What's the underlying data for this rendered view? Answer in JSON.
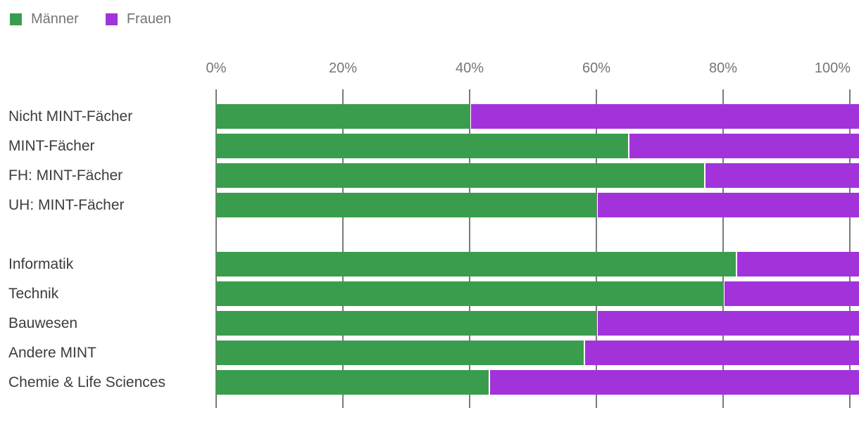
{
  "colors": {
    "maenner": "#3A9D4E",
    "frauen": "#A233DB",
    "gridline": "#7B7B7B",
    "axis_text": "#757575",
    "category_text": "#3D3D3D",
    "background": "#FFFFFF"
  },
  "legend": {
    "items": [
      {
        "label": "Männer",
        "color": "#3A9D4E"
      },
      {
        "label": "Frauen",
        "color": "#A233DB"
      }
    ]
  },
  "chart_data": {
    "type": "bar",
    "orientation": "horizontal",
    "stacked": true,
    "stack_total": 100,
    "title": "",
    "xlabel": "",
    "ylabel": "",
    "xlim": [
      0,
      100
    ],
    "x_ticks": [
      "0%",
      "20%",
      "40%",
      "60%",
      "80%",
      "100%"
    ],
    "grid": true,
    "legend_position": "top-left",
    "categories": [
      "Nicht MINT-Fächer",
      "MINT-Fächer",
      "FH: MINT-Fächer",
      "UH: MINT-Fächer",
      "",
      "Informatik",
      "Technik",
      "Bauwesen",
      "Andere MINT",
      "Chemie & Life Sciences"
    ],
    "series": [
      {
        "name": "Männer",
        "color": "#3A9D4E",
        "values": [
          40,
          65,
          77,
          60,
          null,
          82,
          80,
          60,
          58,
          43
        ]
      },
      {
        "name": "Frauen",
        "color": "#A233DB",
        "values": [
          60,
          35,
          23,
          40,
          null,
          18,
          20,
          40,
          42,
          57
        ]
      }
    ]
  }
}
